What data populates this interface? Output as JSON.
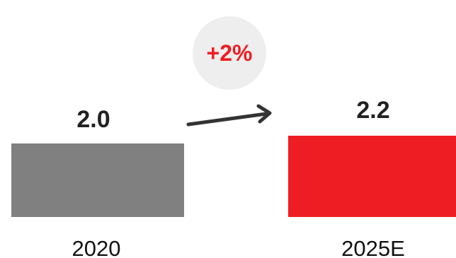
{
  "chart_data": {
    "type": "bar",
    "categories": [
      "2020",
      "2025E"
    ],
    "values": [
      2.0,
      2.2
    ],
    "value_labels": [
      "2.0",
      "2.2"
    ],
    "growth_label": "+2%",
    "title": "",
    "xlabel": "",
    "ylabel": "",
    "legend": "none",
    "grid": false
  },
  "colors": {
    "bars": [
      "#808080",
      "#ee1d23"
    ],
    "badge_bg": "#eeeeee",
    "badge_text": "#ee1d23",
    "arrow": "#333333"
  }
}
